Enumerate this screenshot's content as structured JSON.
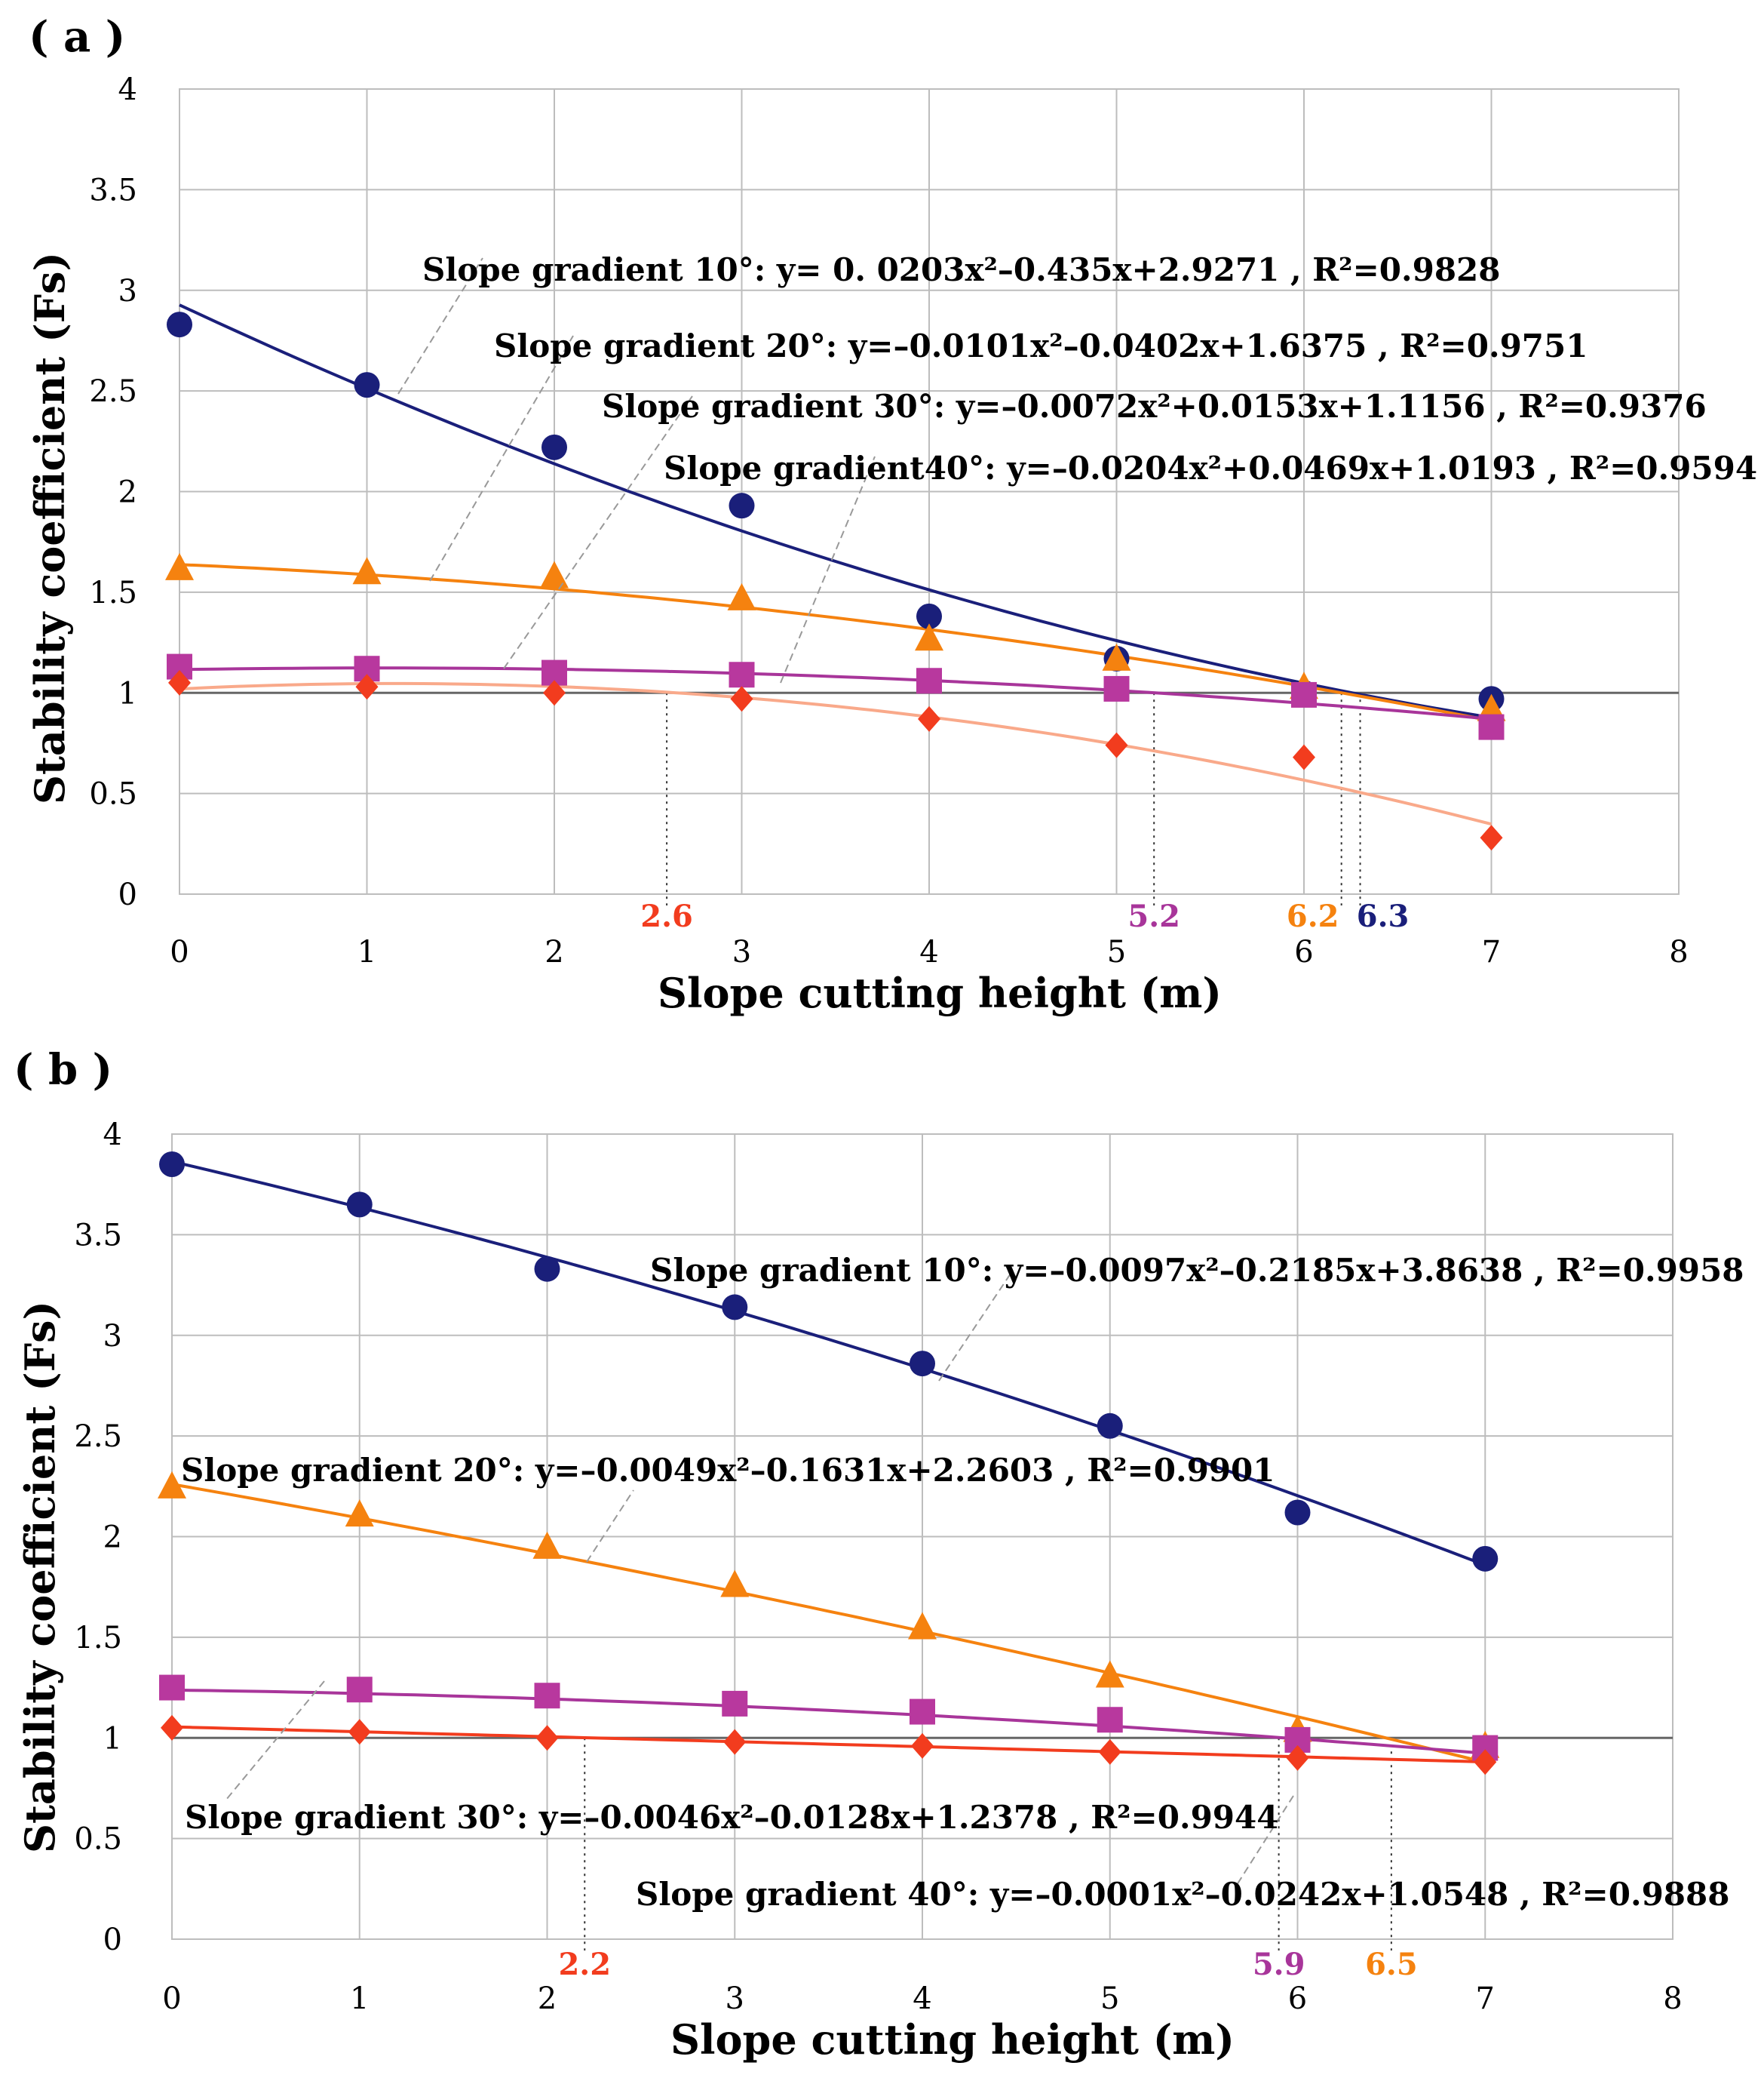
{
  "chart_data": [
    {
      "type": "scatter",
      "panel_label": "( a )",
      "xlabel": "Slope cutting height (m)",
      "ylabel": "Stability coefficient (Fs)",
      "xlim": [
        0,
        8
      ],
      "ylim": [
        0,
        4
      ],
      "x_ticks": [
        "0",
        "1",
        "2",
        "3",
        "4",
        "5",
        "6",
        "7",
        "8"
      ],
      "y_ticks": [
        "0",
        "0.5",
        "1",
        "1.5",
        "2",
        "2.5",
        "3",
        "3.5",
        "4"
      ],
      "grid": true,
      "reference_line_y": 1,
      "series": [
        {
          "name": "Slope gradient 10°",
          "color": "#1a1f7a",
          "trend_color": "#1a1f7a",
          "marker": "circle",
          "x": [
            0,
            1,
            2,
            3,
            4,
            5,
            6,
            7
          ],
          "values": [
            2.83,
            2.53,
            2.22,
            1.93,
            1.38,
            1.17,
            1.0,
            0.97
          ],
          "coef": [
            0.0203,
            -0.435,
            2.9271
          ],
          "equation": "Slope gradient 10°: y= 0. 0203x²–0.435x+2.9271 , R²=0.9828",
          "threshold": {
            "x": 6.3,
            "label": "6.3",
            "color": "#1a1f7a"
          }
        },
        {
          "name": "Slope gradient 20°",
          "color": "#f5820f",
          "trend_color": "#f5820f",
          "marker": "triangle",
          "x": [
            0,
            1,
            2,
            3,
            4,
            5,
            6,
            7
          ],
          "values": [
            1.62,
            1.6,
            1.58,
            1.47,
            1.27,
            1.17,
            1.03,
            0.92
          ],
          "coef": [
            -0.0101,
            -0.0402,
            1.6375
          ],
          "equation": "Slope gradient 20°: y=–0.0101x²–0.0402x+1.6375 , R²=0.9751",
          "threshold": {
            "x": 6.2,
            "label": "6.2",
            "color": "#f5820f"
          }
        },
        {
          "name": "Slope gradient 30°",
          "color": "#b8389e",
          "trend_color": "#a8359a",
          "marker": "square",
          "x": [
            0,
            1,
            2,
            3,
            4,
            5,
            6,
            7
          ],
          "values": [
            1.13,
            1.12,
            1.1,
            1.09,
            1.06,
            1.02,
            0.99,
            0.83
          ],
          "coef": [
            -0.0072,
            0.0153,
            1.1156
          ],
          "equation": "Slope gradient 30°: y=–0.0072x²+0.0153x+1.1156 , R²=0.9376",
          "threshold": {
            "x": 5.2,
            "label": "5.2",
            "color": "#a8359a"
          }
        },
        {
          "name": "Slope gradient 40°",
          "color": "#f23c1e",
          "trend_color": "#f9a98a",
          "marker": "diamond",
          "x": [
            0,
            1,
            2,
            3,
            4,
            5,
            6,
            7
          ],
          "values": [
            1.05,
            1.03,
            1.0,
            0.97,
            0.87,
            0.74,
            0.68,
            0.28
          ],
          "coef": [
            -0.0204,
            0.0469,
            1.0193
          ],
          "equation": "Slope gradient40°: y=–0.0204x²+0.0469x+1.0193 , R²=0.9594",
          "threshold": {
            "x": 2.6,
            "label": "2.6",
            "color": "#f23c1e"
          }
        }
      ]
    },
    {
      "type": "scatter",
      "panel_label": "( b )",
      "xlabel": "Slope cutting height (m)",
      "ylabel": "Stability coefficient (Fs)",
      "xlim": [
        0,
        8
      ],
      "ylim": [
        0,
        4
      ],
      "x_ticks": [
        "0",
        "1",
        "2",
        "3",
        "4",
        "5",
        "6",
        "7",
        "8"
      ],
      "y_ticks": [
        "0",
        "0.5",
        "1",
        "1.5",
        "2",
        "2.5",
        "3",
        "3.5",
        "4"
      ],
      "grid": true,
      "reference_line_y": 1,
      "series": [
        {
          "name": "Slope gradient 10°",
          "color": "#1a1f7a",
          "trend_color": "#1a1f7a",
          "marker": "circle",
          "x": [
            0,
            1,
            2,
            3,
            4,
            5,
            6,
            7
          ],
          "values": [
            3.85,
            3.65,
            3.33,
            3.14,
            2.86,
            2.55,
            2.12,
            1.89
          ],
          "coef": [
            -0.0097,
            -0.2185,
            3.8638
          ],
          "equation": "Slope gradient 10°: y=–0.0097x²–0.2185x+3.8638 , R²=0.9958",
          "threshold": null
        },
        {
          "name": "Slope gradient 20°",
          "color": "#f5820f",
          "trend_color": "#f5820f",
          "marker": "triangle",
          "x": [
            0,
            1,
            2,
            3,
            4,
            5,
            6,
            7
          ],
          "values": [
            2.25,
            2.11,
            1.95,
            1.76,
            1.55,
            1.31,
            1.04,
            0.96
          ],
          "coef": [
            -0.0049,
            -0.1631,
            2.2603
          ],
          "equation": "Slope gradient 20°: y=–0.0049x²–0.1631x+2.2603 , R²=0.9901",
          "threshold": {
            "x": 6.5,
            "label": "6.5",
            "color": "#f5820f"
          }
        },
        {
          "name": "Slope gradient 30°",
          "color": "#b8389e",
          "trend_color": "#a8359a",
          "marker": "square",
          "x": [
            0,
            1,
            2,
            3,
            4,
            5,
            6,
            7
          ],
          "values": [
            1.25,
            1.24,
            1.21,
            1.17,
            1.13,
            1.09,
            0.99,
            0.95
          ],
          "coef": [
            -0.0046,
            -0.0128,
            1.2378
          ],
          "equation": "Slope gradient 30°: y=–0.0046x²–0.0128x+1.2378 , R²=0.9944",
          "threshold": {
            "x": 5.9,
            "label": "5.9",
            "color": "#a8359a"
          }
        },
        {
          "name": "Slope gradient 40°",
          "color": "#f23c1e",
          "trend_color": "#f23c1e",
          "marker": "diamond",
          "x": [
            0,
            1,
            2,
            3,
            4,
            5,
            6,
            7
          ],
          "values": [
            1.05,
            1.03,
            1.0,
            0.98,
            0.96,
            0.93,
            0.9,
            0.88
          ],
          "coef": [
            -0.0001,
            -0.0242,
            1.0548
          ],
          "equation": "Slope gradient 40°: y=–0.0001x²–0.0242x+1.0548 , R²=0.9888",
          "threshold": {
            "x": 2.2,
            "label": "2.2",
            "color": "#f23c1e"
          }
        }
      ]
    }
  ]
}
